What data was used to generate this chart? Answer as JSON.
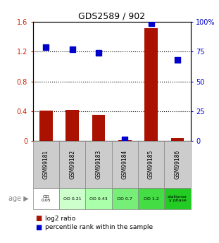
{
  "title": "GDS2589 / 902",
  "samples": [
    "GSM99181",
    "GSM99182",
    "GSM99183",
    "GSM99184",
    "GSM99185",
    "GSM99186"
  ],
  "log2_ratio": [
    0.41,
    0.42,
    0.35,
    0.01,
    1.52,
    0.04
  ],
  "percentile_rank": [
    79,
    77,
    74,
    1,
    99,
    68
  ],
  "age_labels": [
    "OD\n0.05",
    "OD 0.21",
    "OD 0.43",
    "OD 0.7",
    "OD 1.2",
    "stationar\ny phase"
  ],
  "age_colors": [
    "#ffffff",
    "#ccffcc",
    "#aaffaa",
    "#77ee77",
    "#44dd44",
    "#22cc22"
  ],
  "sample_bg": "#cccccc",
  "bar_color": "#aa1100",
  "dot_color": "#0000cc",
  "ylim_left": [
    0,
    1.6
  ],
  "ylim_right": [
    0,
    100
  ],
  "yticks_left": [
    0,
    0.4,
    0.8,
    1.2,
    1.6
  ],
  "yticks_right": [
    0,
    25,
    50,
    75,
    100
  ],
  "ytick_labels_left": [
    "0",
    "0.4",
    "0.8",
    "1.2",
    "1.6"
  ],
  "ytick_labels_right": [
    "0",
    "25",
    "50",
    "75",
    "100%"
  ],
  "left_color": "#cc2200",
  "right_color": "#0000cc",
  "background_color": "#ffffff",
  "bar_width": 0.5,
  "dot_size": 40,
  "dotted_lines": [
    0.4,
    0.8,
    1.2
  ]
}
